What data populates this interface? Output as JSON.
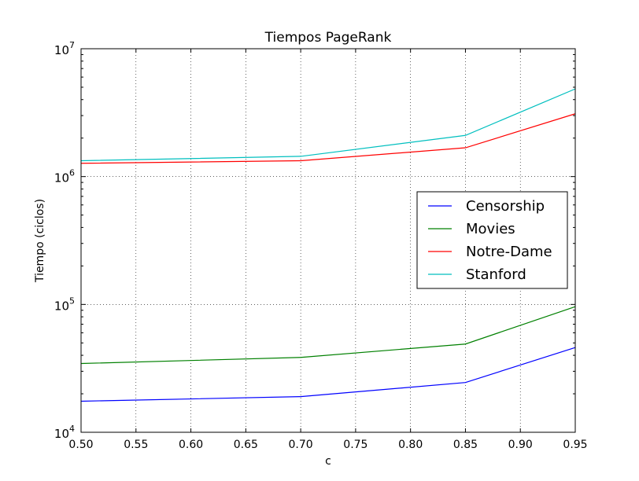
{
  "chart_data": {
    "type": "line",
    "title": "Tiempos PageRank",
    "xlabel": "c",
    "ylabel": "Tiempo (ciclos)",
    "xlim": [
      0.5,
      0.95
    ],
    "ylim": [
      10000,
      10000000
    ],
    "yscale": "log",
    "grid": true,
    "legend_position": "center-right",
    "x": [
      0.5,
      0.7,
      0.85,
      0.95
    ],
    "x_ticks": [
      "0.50",
      "0.55",
      "0.60",
      "0.65",
      "0.70",
      "0.75",
      "0.80",
      "0.85",
      "0.90",
      "0.95"
    ],
    "y_ticks": [
      {
        "base": "10",
        "exp": "4"
      },
      {
        "base": "10",
        "exp": "5"
      },
      {
        "base": "10",
        "exp": "6"
      },
      {
        "base": "10",
        "exp": "7"
      }
    ],
    "series": [
      {
        "name": "Censorship",
        "color": "#0000ff",
        "values": [
          17500,
          19000,
          24500,
          46000
        ]
      },
      {
        "name": "Movies",
        "color": "#008000",
        "values": [
          34500,
          38500,
          49000,
          96000
        ]
      },
      {
        "name": "Notre-Dame",
        "color": "#ff0000",
        "values": [
          1270000,
          1330000,
          1680000,
          3100000
        ]
      },
      {
        "name": "Stanford",
        "color": "#00bfbf",
        "values": [
          1330000,
          1440000,
          2100000,
          4850000
        ]
      }
    ]
  }
}
